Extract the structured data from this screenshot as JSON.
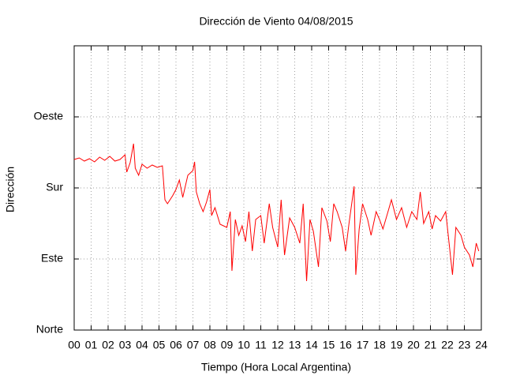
{
  "chart_data": {
    "type": "line",
    "title": "Dirección de Viento 04/08/2015",
    "xlabel": "Tiempo (Hora Local Argentina)",
    "ylabel": "Dirección",
    "xlim": [
      0,
      24
    ],
    "xticks": [
      {
        "value": 0,
        "label": "00"
      },
      {
        "value": 1,
        "label": "01"
      },
      {
        "value": 2,
        "label": "02"
      },
      {
        "value": 3,
        "label": "03"
      },
      {
        "value": 4,
        "label": "04"
      },
      {
        "value": 5,
        "label": "05"
      },
      {
        "value": 6,
        "label": "06"
      },
      {
        "value": 7,
        "label": "07"
      },
      {
        "value": 8,
        "label": "08"
      },
      {
        "value": 9,
        "label": "09"
      },
      10,
      11,
      12,
      13,
      14,
      15,
      16,
      17,
      18,
      19,
      20,
      21,
      22,
      23,
      24
    ],
    "ylim": [
      0,
      360
    ],
    "yticks": [
      {
        "value": 0,
        "label": "Norte"
      },
      {
        "value": 90,
        "label": "Este"
      },
      {
        "value": 180,
        "label": "Sur"
      },
      {
        "value": 270,
        "label": "Oeste"
      }
    ],
    "grid": true,
    "series": [
      {
        "color": "#ff0000",
        "x": [
          0,
          0.3,
          0.6,
          0.9,
          1.2,
          1.5,
          1.8,
          2.1,
          2.4,
          2.7,
          3.0,
          3.1,
          3.3,
          3.5,
          3.6,
          3.8,
          4.0,
          4.3,
          4.6,
          4.9,
          5.2,
          5.35,
          5.5,
          5.8,
          6.0,
          6.2,
          6.4,
          6.7,
          7.0,
          7.1,
          7.2,
          7.4,
          7.6,
          7.8,
          8.0,
          8.1,
          8.3,
          8.6,
          9.0,
          9.2,
          9.3,
          9.5,
          9.7,
          9.9,
          10.1,
          10.3,
          10.5,
          10.7,
          11.0,
          11.2,
          11.5,
          11.7,
          12.0,
          12.2,
          12.4,
          12.7,
          13.0,
          13.3,
          13.5,
          13.7,
          13.9,
          14.1,
          14.4,
          14.6,
          14.9,
          15.1,
          15.3,
          15.5,
          15.8,
          16.0,
          16.2,
          16.5,
          16.6,
          16.8,
          17.0,
          17.3,
          17.5,
          17.8,
          18.0,
          18.2,
          18.5,
          18.7,
          19.0,
          19.3,
          19.6,
          19.9,
          20.2,
          20.4,
          20.6,
          20.9,
          21.1,
          21.3,
          21.6,
          21.9,
          22.1,
          22.3,
          22.5,
          22.8,
          23.0,
          23.3,
          23.5,
          23.7,
          23.85
        ],
        "values": [
          216,
          218,
          214,
          217,
          213,
          219,
          215,
          220,
          214,
          216,
          222,
          200,
          212,
          236,
          205,
          196,
          210,
          205,
          209,
          206,
          208,
          165,
          160,
          170,
          178,
          190,
          168,
          196,
          202,
          213,
          175,
          160,
          150,
          162,
          178,
          145,
          155,
          134,
          130,
          150,
          75,
          140,
          120,
          132,
          112,
          150,
          100,
          140,
          145,
          110,
          160,
          130,
          105,
          165,
          95,
          142,
          130,
          110,
          160,
          62,
          140,
          125,
          80,
          155,
          138,
          112,
          160,
          150,
          130,
          100,
          135,
          182,
          70,
          128,
          160,
          140,
          120,
          150,
          140,
          128,
          150,
          165,
          140,
          155,
          130,
          150,
          140,
          175,
          135,
          150,
          128,
          145,
          138,
          150,
          110,
          70,
          130,
          120,
          105,
          95,
          80,
          110,
          100
        ]
      }
    ]
  }
}
